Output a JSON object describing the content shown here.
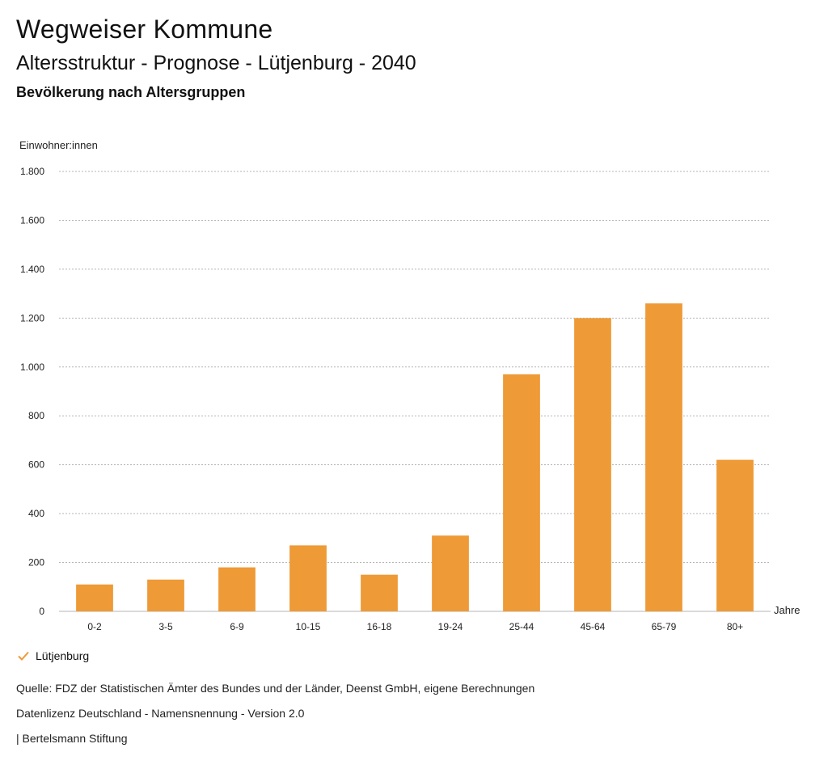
{
  "header": {
    "title": "Wegweiser Kommune",
    "subtitle": "Altersstruktur - Prognose - Lütjenburg - 2040",
    "chart_heading": "Bevölkerung nach Altersgruppen"
  },
  "chart_data": {
    "type": "bar",
    "title": "Bevölkerung nach Altersgruppen",
    "ylabel": "Einwohner:innen",
    "xlabel": "Jahre",
    "ylim": [
      0,
      1800
    ],
    "yticks": [
      0,
      200,
      400,
      600,
      800,
      1000,
      1200,
      1400,
      1600,
      1800
    ],
    "ytick_labels": [
      "0",
      "200",
      "400",
      "600",
      "800",
      "1.000",
      "1.200",
      "1.400",
      "1.600",
      "1.800"
    ],
    "categories": [
      "0-2",
      "3-5",
      "6-9",
      "10-15",
      "16-18",
      "19-24",
      "25-44",
      "45-64",
      "65-79",
      "80+"
    ],
    "series": [
      {
        "name": "Lütjenburg",
        "color": "#ee9a37",
        "values": [
          110,
          130,
          180,
          270,
          150,
          310,
          970,
          1200,
          1260,
          620
        ]
      }
    ],
    "grid": true,
    "legend_position": "bottom-left"
  },
  "legend": {
    "label": "Lütjenburg",
    "color": "#ee9a37"
  },
  "footer": {
    "source": "Quelle: FDZ der Statistischen Ämter des Bundes und der Länder, Deenst GmbH, eigene Berechnungen",
    "license": "Datenlizenz Deutschland - Namensnennung - Version 2.0",
    "publisher": "| Bertelsmann Stiftung"
  }
}
